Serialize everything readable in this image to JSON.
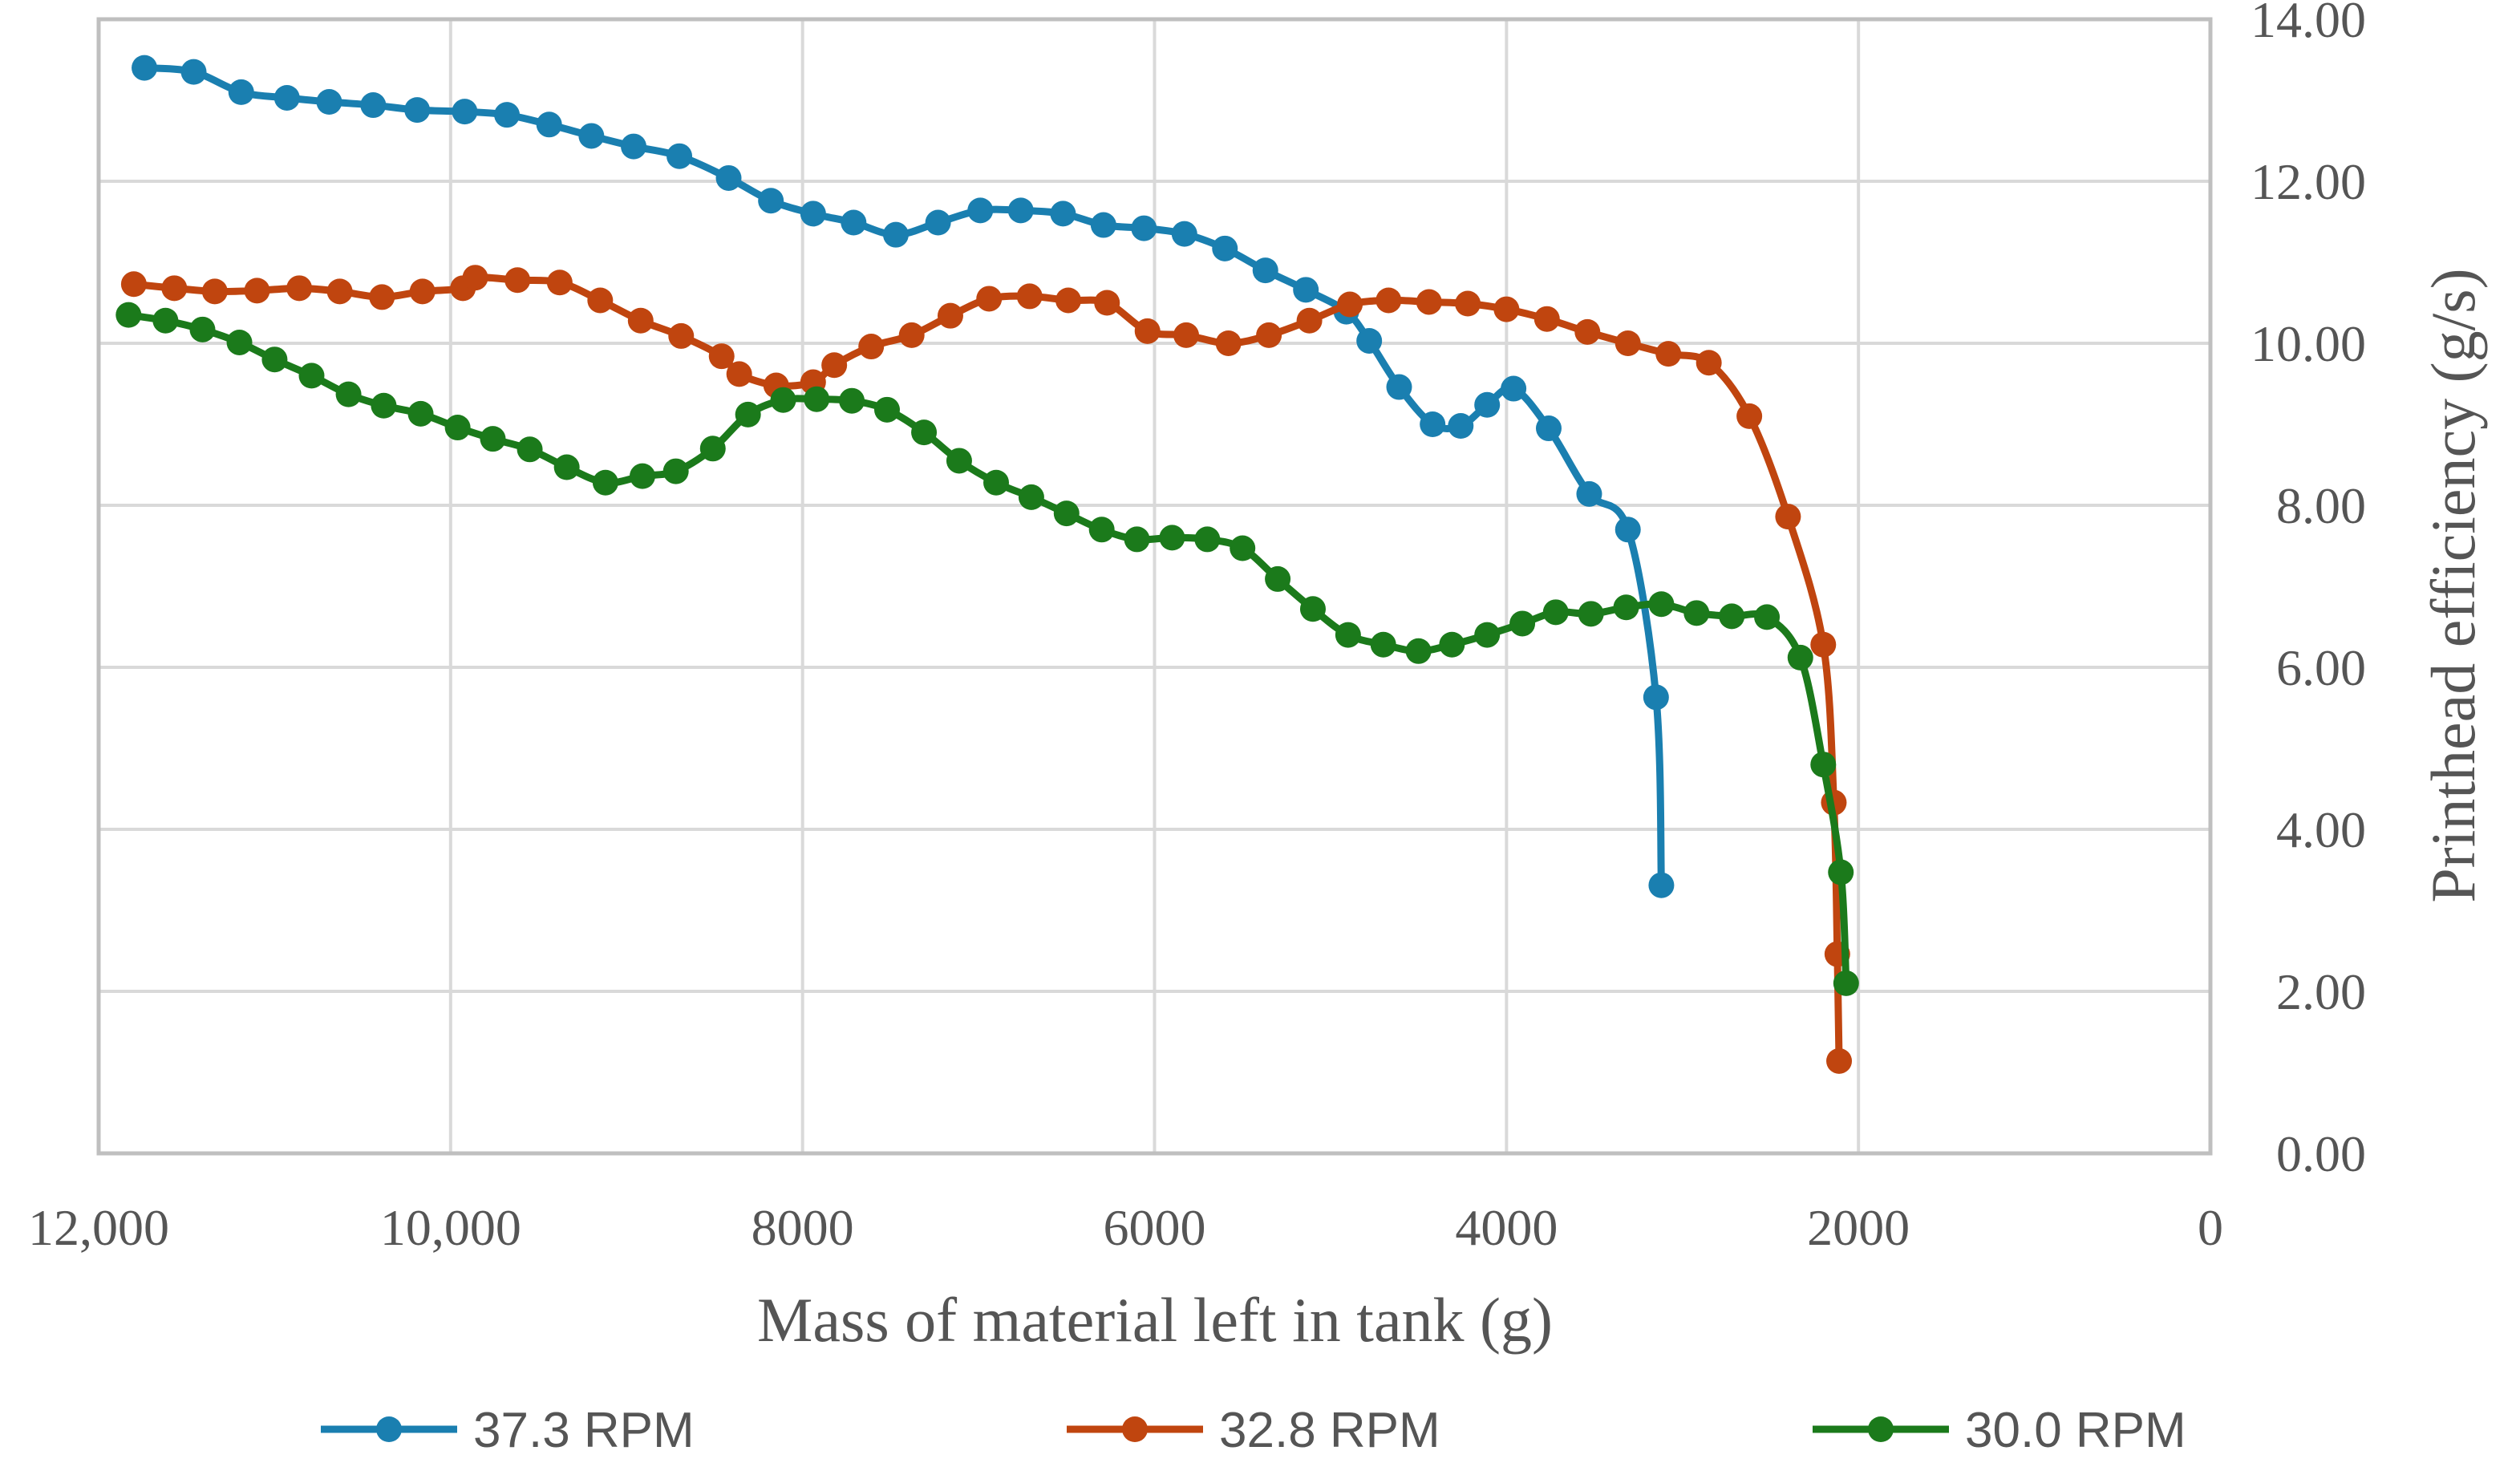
{
  "chart_data": {
    "type": "line",
    "title": "",
    "xlabel": "Mass of material left in tank (g)",
    "ylabel": "Printhead efficiency (g/s)",
    "xlim": [
      12000,
      0
    ],
    "ylim": [
      0,
      14
    ],
    "x_ticks": [
      {
        "value": 12000,
        "label": "12,000"
      },
      {
        "value": 10000,
        "label": "10,000"
      },
      {
        "value": 8000,
        "label": "8000"
      },
      {
        "value": 6000,
        "label": "6000"
      },
      {
        "value": 4000,
        "label": "4000"
      },
      {
        "value": 2000,
        "label": "2000"
      },
      {
        "value": 0,
        "label": "0"
      }
    ],
    "y_ticks": [
      {
        "value": 0,
        "label": "0.00"
      },
      {
        "value": 2,
        "label": "2.00"
      },
      {
        "value": 4,
        "label": "4.00"
      },
      {
        "value": 6,
        "label": "6.00"
      },
      {
        "value": 8,
        "label": "8.00"
      },
      {
        "value": 10,
        "label": "10.00"
      },
      {
        "value": 12,
        "label": "12.00"
      },
      {
        "value": 14,
        "label": "14.00"
      }
    ],
    "grid": true,
    "legend_position": "bottom",
    "series": [
      {
        "name": "37.3 RPM",
        "color": "#1a7fb0",
        "points": [
          [
            11740,
            13.4
          ],
          [
            11460,
            13.35
          ],
          [
            11190,
            13.1
          ],
          [
            10930,
            13.03
          ],
          [
            10690,
            12.98
          ],
          [
            10440,
            12.94
          ],
          [
            10190,
            12.88
          ],
          [
            9920,
            12.86
          ],
          [
            9680,
            12.82
          ],
          [
            9440,
            12.7
          ],
          [
            9200,
            12.56
          ],
          [
            8960,
            12.43
          ],
          [
            8700,
            12.31
          ],
          [
            8420,
            12.04
          ],
          [
            8180,
            11.76
          ],
          [
            7940,
            11.6
          ],
          [
            7710,
            11.49
          ],
          [
            7470,
            11.34
          ],
          [
            7230,
            11.49
          ],
          [
            6990,
            11.64
          ],
          [
            6760,
            11.64
          ],
          [
            6520,
            11.6
          ],
          [
            6290,
            11.46
          ],
          [
            6060,
            11.42
          ],
          [
            5830,
            11.35
          ],
          [
            5600,
            11.17
          ],
          [
            5370,
            10.9
          ],
          [
            5140,
            10.66
          ],
          [
            4910,
            10.39
          ],
          [
            4780,
            10.03
          ],
          [
            4610,
            9.46
          ],
          [
            4420,
            9.0
          ],
          [
            4260,
            8.98
          ],
          [
            4110,
            9.24
          ],
          [
            3960,
            9.44
          ],
          [
            3760,
            8.95
          ],
          [
            3530,
            8.14
          ],
          [
            3310,
            7.7
          ],
          [
            3150,
            5.63
          ],
          [
            3120,
            3.31
          ]
        ]
      },
      {
        "name": "32.8 RPM",
        "color": "#c0450f",
        "points": [
          [
            11800,
            10.73
          ],
          [
            11570,
            10.68
          ],
          [
            11340,
            10.64
          ],
          [
            11100,
            10.65
          ],
          [
            10860,
            10.68
          ],
          [
            10630,
            10.64
          ],
          [
            10390,
            10.57
          ],
          [
            10160,
            10.64
          ],
          [
            9930,
            10.68
          ],
          [
            9860,
            10.81
          ],
          [
            9620,
            10.78
          ],
          [
            9380,
            10.75
          ],
          [
            9150,
            10.53
          ],
          [
            8920,
            10.28
          ],
          [
            8690,
            10.09
          ],
          [
            8460,
            9.84
          ],
          [
            8360,
            9.62
          ],
          [
            8150,
            9.48
          ],
          [
            7940,
            9.52
          ],
          [
            7820,
            9.73
          ],
          [
            7610,
            9.96
          ],
          [
            7380,
            10.1
          ],
          [
            7160,
            10.34
          ],
          [
            6940,
            10.55
          ],
          [
            6710,
            10.58
          ],
          [
            6490,
            10.53
          ],
          [
            6270,
            10.5
          ],
          [
            6040,
            10.15
          ],
          [
            5820,
            10.1
          ],
          [
            5580,
            10.0
          ],
          [
            5350,
            10.1
          ],
          [
            5120,
            10.28
          ],
          [
            4890,
            10.48
          ],
          [
            4670,
            10.53
          ],
          [
            4440,
            10.51
          ],
          [
            4220,
            10.49
          ],
          [
            4000,
            10.42
          ],
          [
            3770,
            10.3
          ],
          [
            3540,
            10.14
          ],
          [
            3310,
            10.0
          ],
          [
            3080,
            9.87
          ],
          [
            2850,
            9.76
          ],
          [
            2620,
            9.1
          ],
          [
            2400,
            7.86
          ],
          [
            2200,
            6.28
          ],
          [
            2140,
            4.33
          ],
          [
            2120,
            2.46
          ],
          [
            2110,
            1.14
          ]
        ]
      },
      {
        "name": "30.0 RPM",
        "color": "#1b7a1b",
        "points": [
          [
            11830,
            10.35
          ],
          [
            11620,
            10.28
          ],
          [
            11410,
            10.17
          ],
          [
            11200,
            10.01
          ],
          [
            11000,
            9.8
          ],
          [
            10790,
            9.6
          ],
          [
            10580,
            9.37
          ],
          [
            10380,
            9.23
          ],
          [
            10170,
            9.13
          ],
          [
            9960,
            8.96
          ],
          [
            9760,
            8.82
          ],
          [
            9550,
            8.69
          ],
          [
            9340,
            8.47
          ],
          [
            9120,
            8.28
          ],
          [
            8910,
            8.36
          ],
          [
            8720,
            8.42
          ],
          [
            8510,
            8.7
          ],
          [
            8310,
            9.12
          ],
          [
            8110,
            9.3
          ],
          [
            7920,
            9.31
          ],
          [
            7720,
            9.29
          ],
          [
            7520,
            9.18
          ],
          [
            7310,
            8.9
          ],
          [
            7110,
            8.55
          ],
          [
            6900,
            8.28
          ],
          [
            6700,
            8.1
          ],
          [
            6500,
            7.9
          ],
          [
            6300,
            7.7
          ],
          [
            6100,
            7.58
          ],
          [
            5900,
            7.6
          ],
          [
            5700,
            7.58
          ],
          [
            5500,
            7.47
          ],
          [
            5300,
            7.09
          ],
          [
            5100,
            6.72
          ],
          [
            4900,
            6.4
          ],
          [
            4700,
            6.28
          ],
          [
            4500,
            6.2
          ],
          [
            4310,
            6.28
          ],
          [
            4110,
            6.4
          ],
          [
            3910,
            6.54
          ],
          [
            3720,
            6.68
          ],
          [
            3520,
            6.66
          ],
          [
            3320,
            6.74
          ],
          [
            3120,
            6.78
          ],
          [
            2920,
            6.67
          ],
          [
            2720,
            6.63
          ],
          [
            2520,
            6.62
          ],
          [
            2330,
            6.12
          ],
          [
            2200,
            4.8
          ],
          [
            2100,
            3.47
          ],
          [
            2070,
            2.1
          ]
        ]
      }
    ]
  }
}
